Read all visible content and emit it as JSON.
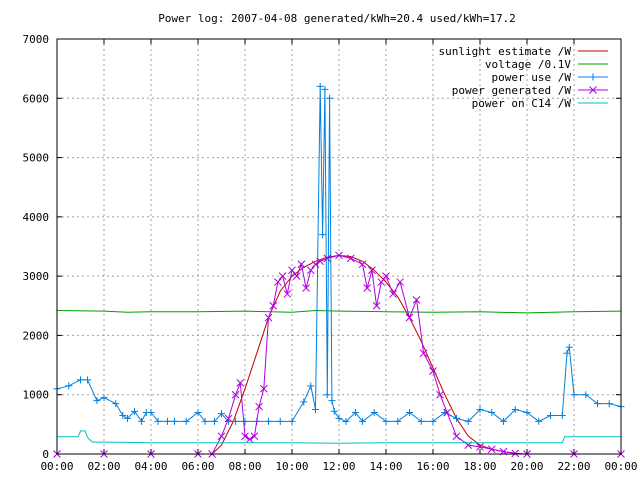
{
  "chart_data": {
    "type": "line",
    "title": "Power log: 2007-04-08 generated/kWh=20.4 used/kWh=17.2",
    "xlabel": "",
    "ylabel": "",
    "x_unit": "hour",
    "xlim": [
      0,
      24
    ],
    "ylim": [
      0,
      7000
    ],
    "x_ticks": [
      0,
      2,
      4,
      6,
      8,
      10,
      12,
      14,
      16,
      18,
      20,
      22,
      24
    ],
    "x_tick_labels": [
      "00:00",
      "02:00",
      "04:00",
      "06:00",
      "08:00",
      "10:00",
      "12:00",
      "14:00",
      "16:00",
      "18:00",
      "20:00",
      "22:00",
      "00:00"
    ],
    "y_ticks": [
      0,
      1000,
      2000,
      3000,
      4000,
      5000,
      6000,
      7000
    ],
    "y_tick_labels": [
      "0",
      "1000",
      "2000",
      "3000",
      "4000",
      "5000",
      "6000",
      "7000"
    ],
    "grid": true,
    "legend_position": "top-right",
    "series": [
      {
        "name": "sunlight estimate /W",
        "color": "#c00000",
        "marker": "none",
        "x": [
          6.6,
          7.0,
          7.5,
          8.0,
          8.5,
          9.0,
          9.5,
          10.0,
          10.5,
          11.0,
          11.5,
          12.0,
          12.5,
          13.0,
          13.5,
          14.0,
          14.5,
          15.0,
          15.5,
          16.0,
          16.5,
          17.0,
          17.5,
          18.0,
          18.5,
          19.0,
          19.5,
          19.7
        ],
        "y": [
          0,
          150,
          550,
          1100,
          1700,
          2300,
          2750,
          3000,
          3150,
          3250,
          3320,
          3350,
          3330,
          3250,
          3100,
          2900,
          2650,
          2300,
          1900,
          1450,
          1000,
          600,
          300,
          150,
          80,
          40,
          10,
          0
        ]
      },
      {
        "name": "voltage /0.1V",
        "color": "#00a000",
        "marker": "none",
        "x": [
          0,
          2,
          3,
          4,
          6,
          8,
          10,
          11,
          12,
          14,
          16,
          18,
          20,
          22,
          24
        ],
        "y": [
          2420,
          2410,
          2390,
          2400,
          2400,
          2410,
          2390,
          2420,
          2410,
          2400,
          2390,
          2400,
          2380,
          2400,
          2410
        ]
      },
      {
        "name": "power use /W",
        "color": "#0080e0",
        "marker": "plus",
        "x": [
          0,
          0.5,
          1.0,
          1.3,
          1.7,
          2.0,
          2.5,
          2.8,
          3.0,
          3.3,
          3.6,
          3.8,
          4.0,
          4.3,
          4.7,
          5.0,
          5.5,
          6.0,
          6.3,
          6.7,
          7.0,
          7.3,
          7.6,
          8.0,
          8.5,
          9.0,
          9.5,
          10.0,
          10.5,
          10.8,
          11.0,
          11.2,
          11.3,
          11.4,
          11.5,
          11.6,
          11.7,
          11.8,
          12.0,
          12.3,
          12.7,
          13.0,
          13.5,
          14.0,
          14.5,
          15.0,
          15.5,
          16.0,
          16.5,
          17.0,
          17.5,
          18.0,
          18.5,
          19.0,
          19.5,
          20.0,
          20.5,
          21.0,
          21.5,
          21.7,
          21.8,
          22.0,
          22.5,
          23.0,
          23.5,
          24.0
        ],
        "y": [
          1100,
          1150,
          1250,
          1250,
          900,
          950,
          850,
          650,
          600,
          720,
          550,
          700,
          700,
          550,
          550,
          550,
          550,
          700,
          550,
          550,
          680,
          550,
          550,
          550,
          550,
          550,
          550,
          550,
          880,
          1150,
          750,
          6200,
          3700,
          6150,
          1000,
          6000,
          900,
          720,
          600,
          550,
          700,
          550,
          700,
          550,
          550,
          700,
          550,
          550,
          700,
          600,
          550,
          750,
          700,
          550,
          750,
          700,
          550,
          650,
          650,
          1700,
          1800,
          1000,
          1000,
          850,
          850,
          800
        ]
      },
      {
        "name": "power generated /W",
        "color": "#b000e0",
        "marker": "cross",
        "x": [
          0,
          2,
          4,
          6,
          6.6,
          7.0,
          7.3,
          7.6,
          7.8,
          8.0,
          8.2,
          8.4,
          8.6,
          8.8,
          9.0,
          9.2,
          9.4,
          9.6,
          9.8,
          10.0,
          10.2,
          10.4,
          10.6,
          10.8,
          11.0,
          11.2,
          11.5,
          12.0,
          12.5,
          13.0,
          13.2,
          13.4,
          13.6,
          13.8,
          14.0,
          14.3,
          14.6,
          15.0,
          15.3,
          15.6,
          16.0,
          16.3,
          16.6,
          17.0,
          17.5,
          18.0,
          18.5,
          19.0,
          19.5,
          20.0,
          22.0,
          24.0
        ],
        "y": [
          0,
          0,
          0,
          0,
          0,
          300,
          600,
          1000,
          1200,
          300,
          250,
          300,
          800,
          1100,
          2300,
          2500,
          2900,
          3000,
          2700,
          3100,
          3000,
          3200,
          2800,
          3100,
          3200,
          3250,
          3300,
          3350,
          3300,
          3200,
          2800,
          3100,
          2500,
          2900,
          3000,
          2700,
          2900,
          2300,
          2600,
          1700,
          1400,
          1000,
          700,
          300,
          150,
          120,
          80,
          40,
          10,
          0,
          0,
          0
        ]
      },
      {
        "name": "power on C14 /W",
        "color": "#00c0c0",
        "marker": "none",
        "x": [
          0,
          0.9,
          1.0,
          1.2,
          1.3,
          1.5,
          1.8,
          2.0,
          4.0,
          6.0,
          8.0,
          10.0,
          12.0,
          14.0,
          16.0,
          18.0,
          20.0,
          21.5,
          21.6,
          24.0
        ],
        "y": [
          290,
          290,
          390,
          390,
          280,
          200,
          200,
          200,
          190,
          190,
          190,
          190,
          180,
          190,
          190,
          190,
          190,
          190,
          290,
          290
        ]
      }
    ]
  }
}
